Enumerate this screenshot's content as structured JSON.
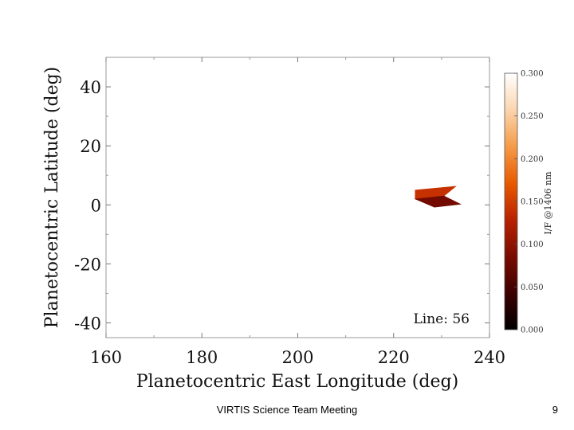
{
  "chart_data": {
    "type": "heatmap",
    "title": "",
    "xlabel": "Planetocentric East Longitude (deg)",
    "ylabel": "Planetocentric Latitude (deg)",
    "xlim": [
      160,
      240
    ],
    "ylim": [
      -45,
      50
    ],
    "x_ticks": [
      160,
      180,
      200,
      220,
      240
    ],
    "y_ticks": [
      -40,
      -20,
      0,
      20,
      40
    ],
    "annotation": "Line: 56",
    "grid": false,
    "colorbar": {
      "title": "I/F @1406 nm",
      "range": [
        0.0,
        0.3
      ],
      "ticks": [
        "0.000",
        "0.050",
        "0.100",
        "0.150",
        "0.200",
        "0.250",
        "0.300"
      ],
      "colormap": [
        "#000000",
        "#3d0000",
        "#7a0c00",
        "#b82200",
        "#e85a00",
        "#f59b48",
        "#fbd5ae",
        "#ffffff"
      ]
    },
    "patches": [
      {
        "points": [
          [
            224.5,
            5.0
          ],
          [
            233.0,
            6.3
          ],
          [
            230.5,
            3.0
          ],
          [
            224.5,
            2.0
          ]
        ],
        "value": 0.14
      },
      {
        "points": [
          [
            224.5,
            2.0
          ],
          [
            230.5,
            3.0
          ],
          [
            234.0,
            0.2
          ],
          [
            228.5,
            -0.8
          ]
        ],
        "value": 0.08
      }
    ]
  },
  "footer": {
    "meeting": "VIRTIS Science Team Meeting",
    "page": "9"
  }
}
